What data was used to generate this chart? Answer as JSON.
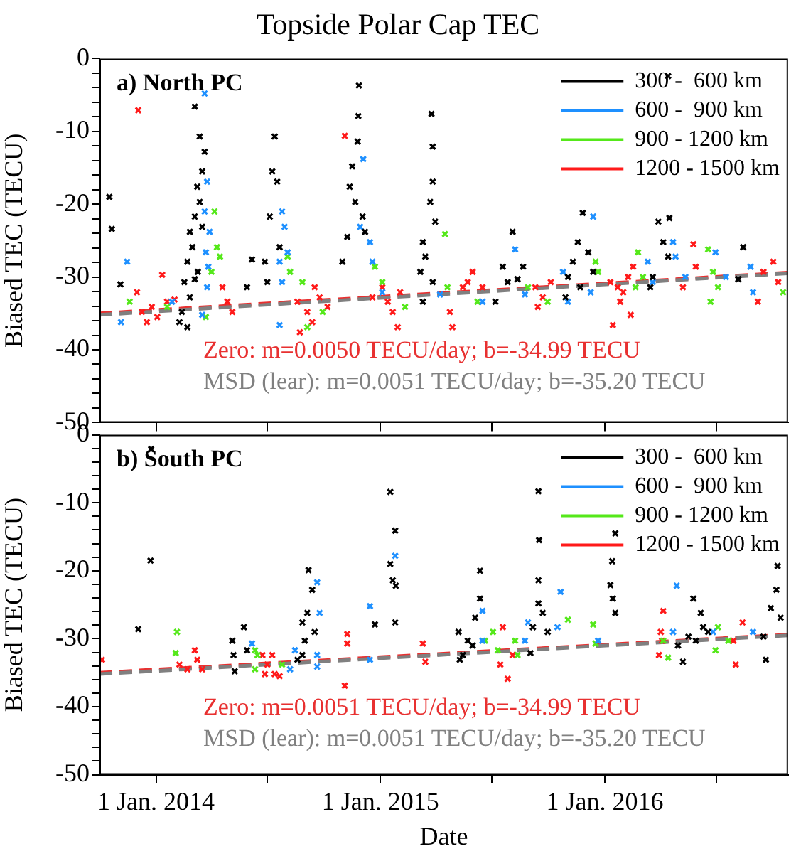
{
  "chart_data": [
    {
      "type": "scatter",
      "title": "Topside Polar Cap TEC",
      "ylabel": "Biased TEC (TECU)",
      "annotations": [
        "a) North PC",
        "Zero: m=0.0050 TECU/day; b=-34.99 TECU",
        "MSD (lear): m=0.0051 TECU/day; b=-35.20 TECU"
      ],
      "xlim": [
        "2013-10-01",
        "2016-10-25"
      ],
      "ylim": [
        -50,
        0
      ],
      "xticks": [
        {
          "value": "2014-01-01",
          "label": null
        },
        {
          "value": "2014-07-01",
          "label": null
        },
        {
          "value": "2015-01-01",
          "label": null
        },
        {
          "value": "2015-07-01",
          "label": null
        },
        {
          "value": "2016-01-01",
          "label": null
        },
        {
          "value": "2016-07-01",
          "label": null
        }
      ],
      "yticks": [
        -50,
        {
          "value": -48,
          "label": null
        },
        {
          "value": -46,
          "label": null
        },
        {
          "value": -44,
          "label": null
        },
        {
          "value": -42,
          "label": null
        },
        -40,
        {
          "value": -38,
          "label": null
        },
        {
          "value": -36,
          "label": null
        },
        {
          "value": -34,
          "label": null
        },
        {
          "value": -32,
          "label": null
        },
        -30,
        {
          "value": -28,
          "label": null
        },
        {
          "value": -26,
          "label": null
        },
        {
          "value": -24,
          "label": null
        },
        {
          "value": -22,
          "label": null
        },
        -20,
        {
          "value": -18,
          "label": null
        },
        {
          "value": -16,
          "label": null
        },
        {
          "value": -14,
          "label": null
        },
        {
          "value": -12,
          "label": null
        },
        -10,
        {
          "value": -8,
          "label": null
        },
        {
          "value": -6,
          "label": null
        },
        {
          "value": -4,
          "label": null
        },
        {
          "value": -2,
          "label": null
        },
        0
      ],
      "legend": "top right",
      "tick_labels": "y",
      "marker": "cross",
      "series": [
        {
          "name": "300 -  600 km",
          "color": "#000000",
          "x": [
            "2013-10-17",
            "2013-10-21",
            "2013-11-04",
            "2014-03-05",
            "2014-03-13",
            "2014-03-21",
            "2014-03-17",
            "2014-03-09",
            "2014-03-13",
            "2014-03-05",
            "2014-02-25",
            "2014-03-01",
            "2014-02-21",
            "2014-02-16",
            "2014-02-25",
            "2014-02-12",
            "2014-02-21",
            "2014-02-08",
            "2014-03-05",
            "2014-03-17",
            "2014-03-10",
            "2014-07-13",
            "2014-07-09",
            "2014-07-17",
            "2014-07-05",
            "2014-07-21",
            "2014-06-27",
            "2014-06-06",
            "2014-07-01",
            "2014-05-29",
            "2014-11-27",
            "2014-11-26",
            "2014-11-25",
            "2014-11-16",
            "2014-11-12",
            "2014-11-21",
            "2014-11-08",
            "2014-10-31",
            "2014-12-03",
            "2014-12-07",
            "2015-03-25",
            "2015-03-27",
            "2015-03-27",
            "2015-03-23",
            "2015-03-31",
            "2015-03-11",
            "2015-03-15",
            "2015-03-07",
            "2015-03-27",
            "2015-03-11",
            "2015-07-07",
            "2015-07-19",
            "2015-08-04",
            "2015-08-12",
            "2015-08-21",
            "2015-07-27",
            "2015-11-26",
            "2015-11-18",
            "2015-11-10",
            "2015-11-02",
            "2015-12-05",
            "2015-12-13",
            "2015-10-29",
            "2015-11-22",
            "2016-04-15",
            "2016-03-28",
            "2016-04-05",
            "2016-04-13",
            "2016-03-19",
            "2016-03-15",
            "2016-04-13",
            "2016-08-13",
            "2016-08-05"
          ],
          "values": [
            -19.0,
            -23.4,
            -31.0,
            -6.6,
            -10.7,
            -12.8,
            -15.5,
            -17.6,
            -19.7,
            -21.7,
            -23.8,
            -25.9,
            -27.9,
            -30.7,
            -32.8,
            -34.8,
            -36.9,
            -36.2,
            -30.3,
            -23.1,
            -29.3,
            -10.7,
            -15.5,
            -16.9,
            -21.7,
            -25.9,
            -27.9,
            -27.6,
            -30.7,
            -31.4,
            -3.7,
            -7.9,
            -11.4,
            -14.8,
            -17.6,
            -19.7,
            -24.5,
            -27.9,
            -21.7,
            -23.8,
            -7.6,
            -12.1,
            -16.9,
            -19.7,
            -22.4,
            -25.2,
            -27.2,
            -29.3,
            -30.7,
            -33.4,
            -33.4,
            -28.6,
            -23.8,
            -30.3,
            -28.6,
            -30.7,
            -21.2,
            -25.2,
            -27.9,
            -30.0,
            -26.6,
            -29.3,
            -32.8,
            -31.4,
            -21.9,
            -22.4,
            -25.2,
            -27.2,
            -30.0,
            -31.4,
            -2.4,
            -25.9,
            -30.3
          ]
        },
        {
          "name": "600 -  900 km",
          "color": "#1e90ff",
          "x": [
            "2013-11-15",
            "2014-03-21",
            "2014-03-25",
            "2014-03-21",
            "2014-03-29",
            "2014-03-23",
            "2014-03-27",
            "2014-03-25",
            "2014-03-17",
            "2014-01-27",
            "2013-11-05",
            "2014-07-25",
            "2014-07-29",
            "2014-07-21",
            "2014-08-03",
            "2014-07-25",
            "2014-07-21",
            "2014-11-29",
            "2014-12-15",
            "2014-12-19",
            "2014-12-04",
            "2015-01-04",
            "2015-04-08",
            "2015-06-16",
            "2015-08-08",
            "2015-08-24",
            "2015-12-13",
            "2015-10-25",
            "2015-11-02",
            "2015-12-09",
            "2016-03-11",
            "2016-03-19",
            "2016-04-21",
            "2016-04-25",
            "2016-05-11",
            "2016-06-29",
            "2016-07-16",
            "2016-08-25",
            "2016-08-29"
          ],
          "values": [
            -27.9,
            -4.8,
            -16.9,
            -21.0,
            -23.8,
            -26.6,
            -28.6,
            -31.4,
            -35.2,
            -33.4,
            -36.2,
            -21.0,
            -23.1,
            -27.9,
            -26.6,
            -30.7,
            -36.6,
            -23.1,
            -25.2,
            -27.9,
            -13.8,
            -32.1,
            -32.4,
            -33.4,
            -26.2,
            -32.4,
            -21.7,
            -29.3,
            -33.4,
            -32.1,
            -27.9,
            -30.7,
            -25.2,
            -27.2,
            -30.0,
            -26.6,
            -30.0,
            -28.6,
            -32.1
          ]
        },
        {
          "name": "900 - 1200 km",
          "color": "#55e81a",
          "x": [
            "2014-04-06",
            "2014-04-10",
            "2014-04-15",
            "2014-04-01",
            "2014-03-23",
            "2013-11-19",
            "2014-01-19",
            "2014-08-03",
            "2014-08-07",
            "2014-08-27",
            "2014-09-29",
            "2014-09-04",
            "2014-12-23",
            "2015-01-04",
            "2015-02-10",
            "2015-04-16",
            "2015-04-20",
            "2015-06-08",
            "2015-08-29",
            "2015-09-30",
            "2015-12-17",
            "2015-12-21",
            "2016-02-24",
            "2016-03-03",
            "2016-02-20",
            "2016-06-17",
            "2016-06-25",
            "2016-07-03",
            "2016-06-21",
            "2016-10-17"
          ],
          "values": [
            -21.0,
            -25.9,
            -27.2,
            -29.3,
            -35.5,
            -33.4,
            -34.1,
            -27.2,
            -29.3,
            -30.7,
            -34.8,
            -36.9,
            -28.6,
            -30.7,
            -34.1,
            -24.1,
            -31.4,
            -33.4,
            -31.4,
            -33.4,
            -27.9,
            -29.3,
            -26.6,
            -30.0,
            -31.4,
            -26.2,
            -29.3,
            -31.4,
            -33.4,
            -32.1
          ]
        },
        {
          "name": "1200 - 1500 km",
          "color": "#ff1a1a",
          "x": [
            "2013-12-03",
            "2014-01-11",
            "2013-12-01",
            "2013-12-09",
            "2013-12-17",
            "2013-12-25",
            "2014-01-03",
            "2014-01-19",
            "2014-01-31",
            "2014-04-19",
            "2014-04-27",
            "2014-05-05",
            "2014-08-19",
            "2014-09-04",
            "2014-09-16",
            "2014-09-12",
            "2014-09-24",
            "2014-10-07",
            "2014-08-23",
            "2014-11-04",
            "2014-12-19",
            "2015-01-04",
            "2015-01-21",
            "2015-02-02",
            "2015-01-29",
            "2015-01-13",
            "2015-04-24",
            "2015-04-28",
            "2015-05-15",
            "2015-05-31",
            "2015-05-23",
            "2015-06-16",
            "2015-09-10",
            "2015-09-22",
            "2015-10-05",
            "2015-09-14",
            "2016-01-14",
            "2016-01-22",
            "2016-01-31",
            "2016-02-08",
            "2016-02-16",
            "2016-01-26",
            "2016-02-12",
            "2016-01-10",
            "2016-05-24",
            "2016-05-28",
            "2016-05-07",
            "2016-09-15",
            "2016-10-01",
            "2016-09-06",
            "2016-10-09"
          ],
          "values": [
            -7.1,
            -29.7,
            -32.1,
            -34.8,
            -36.2,
            -34.1,
            -35.5,
            -33.4,
            -33.1,
            -31.4,
            -33.4,
            -34.8,
            -33.4,
            -34.8,
            -31.4,
            -36.2,
            -32.8,
            -34.1,
            -37.6,
            -10.6,
            -32.8,
            -31.4,
            -34.8,
            -32.1,
            -36.9,
            -33.4,
            -34.8,
            -36.9,
            -31.4,
            -29.3,
            -30.7,
            -31.4,
            -31.4,
            -32.8,
            -30.7,
            -34.1,
            -36.6,
            -31.4,
            -32.1,
            -30.0,
            -28.6,
            -33.4,
            -35.2,
            -30.7,
            -25.5,
            -28.6,
            -31.4,
            -29.3,
            -27.9,
            -33.4,
            -30.7
          ]
        },
        {
          "type": "line",
          "color": "#808080",
          "line_style": "dashed",
          "marker": "none",
          "x": [
            "2013-10-01",
            "2016-10-25"
          ],
          "values": [
            -35.2,
            -29.5
          ]
        },
        {
          "type": "line",
          "color": "#e83030",
          "line_style": "dashed",
          "marker": "none",
          "x": [
            "2013-10-01",
            "2016-10-25"
          ],
          "values": [
            -35.0,
            -29.4
          ]
        }
      ]
    },
    {
      "type": "scatter",
      "xlabel": "Date",
      "ylabel": "Biased TEC (TECU)",
      "annotations": [
        "b) South PC",
        "Zero: m=0.0051 TECU/day; b=-34.99 TECU",
        "MSD (lear): m=0.0051 TECU/day; b=-35.20 TECU"
      ],
      "xlim": [
        "2013-10-01",
        "2016-10-25"
      ],
      "ylim": [
        -50,
        0
      ],
      "xticks": [
        {
          "value": "2014-01-01",
          "label": "1 Jan. 2014"
        },
        {
          "value": "2014-07-01",
          "label": null
        },
        {
          "value": "2015-01-01",
          "label": "1 Jan. 2015"
        },
        {
          "value": "2015-07-01",
          "label": null
        },
        {
          "value": "2016-01-01",
          "label": "1 Jan. 2016"
        },
        {
          "value": "2016-07-01",
          "label": null
        }
      ],
      "yticks": [
        -50,
        {
          "value": -48,
          "label": null
        },
        {
          "value": -46,
          "label": null
        },
        {
          "value": -44,
          "label": null
        },
        {
          "value": -42,
          "label": null
        },
        -40,
        {
          "value": -38,
          "label": null
        },
        {
          "value": -36,
          "label": null
        },
        {
          "value": -34,
          "label": null
        },
        {
          "value": -32,
          "label": null
        },
        -30,
        {
          "value": -28,
          "label": null
        },
        {
          "value": -26,
          "label": null
        },
        {
          "value": -24,
          "label": null
        },
        {
          "value": -22,
          "label": null
        },
        -20,
        {
          "value": -18,
          "label": null
        },
        {
          "value": -16,
          "label": null
        },
        {
          "value": -14,
          "label": null
        },
        {
          "value": -12,
          "label": null
        },
        -10,
        {
          "value": -8,
          "label": null
        },
        {
          "value": -6,
          "label": null
        },
        {
          "value": -4,
          "label": null
        },
        {
          "value": -2,
          "label": null
        },
        0
      ],
      "legend": "top right",
      "marker": "cross",
      "series": [
        {
          "name": "300 -  600 km",
          "color": "#000000",
          "x": [
            "2013-12-24",
            "2013-12-23",
            "2013-12-03",
            "2014-05-05",
            "2014-05-07",
            "2014-05-09",
            "2014-05-24",
            "2014-05-29",
            "2014-09-06",
            "2014-09-04",
            "2014-09-12",
            "2014-08-27",
            "2014-08-31",
            "2014-08-27",
            "2014-08-19",
            "2014-09-16",
            "2014-12-23",
            "2015-01-17",
            "2015-01-25",
            "2015-01-17",
            "2015-01-21",
            "2015-01-26",
            "2015-01-25",
            "2015-05-08",
            "2015-05-15",
            "2015-05-23",
            "2015-06-12",
            "2015-06-12",
            "2015-06-04",
            "2015-05-31",
            "2015-05-10",
            "2015-09-15",
            "2015-09-16",
            "2015-09-15",
            "2015-09-15",
            "2015-09-22",
            "2015-09-06",
            "2015-09-02",
            "2015-09-30",
            "2016-01-18",
            "2016-01-13",
            "2016-01-10",
            "2016-01-14",
            "2016-01-18",
            "2016-05-24",
            "2016-06-05",
            "2016-06-09",
            "2016-05-16",
            "2016-05-07",
            "2016-04-29",
            "2016-05-28",
            "2016-06-17",
            "2016-09-15",
            "2016-09-19",
            "2016-09-27",
            "2016-10-08",
            "2016-10-06",
            "2016-10-13"
          ],
          "values": [
            -2.1,
            -18.5,
            -28.6,
            -30.3,
            -32.4,
            -34.8,
            -28.3,
            -31.7,
            -19.9,
            -26.2,
            -22.8,
            -27.6,
            -30.3,
            -32.4,
            -33.1,
            -29.0,
            -27.9,
            -8.4,
            -14.1,
            -19.0,
            -21.4,
            -22.2,
            -27.6,
            -29.0,
            -32.4,
            -30.3,
            -20.0,
            -24.1,
            -26.9,
            -31.0,
            -33.1,
            -8.3,
            -15.5,
            -21.4,
            -24.8,
            -26.2,
            -28.3,
            -32.1,
            -29.0,
            -14.5,
            -18.6,
            -22.1,
            -24.1,
            -26.2,
            -24.1,
            -26.2,
            -28.3,
            -29.7,
            -33.4,
            -31.0,
            -30.3,
            -29.0,
            -29.7,
            -33.1,
            -25.5,
            -19.3,
            -22.8,
            -26.9
          ]
        },
        {
          "name": "600 -  900 km",
          "color": "#1e90ff",
          "x": [
            "2014-06-06",
            "2014-08-15",
            "2014-08-07",
            "2014-09-20",
            "2014-09-24",
            "2014-09-20",
            "2014-09-20",
            "2014-12-15",
            "2014-12-15",
            "2015-01-25",
            "2015-06-16",
            "2015-06-16",
            "2015-08-24",
            "2015-08-29",
            "2015-10-21",
            "2015-10-16",
            "2015-12-21",
            "2016-04-27",
            "2016-04-21",
            "2016-06-25",
            "2016-08-29"
          ],
          "values": [
            -30.7,
            -31.7,
            -34.5,
            -21.7,
            -26.2,
            -32.4,
            -34.1,
            -25.2,
            -33.1,
            -17.8,
            -25.9,
            -30.3,
            -30.3,
            -27.6,
            -23.1,
            -28.3,
            -30.3,
            -22.2,
            -29.0,
            -29.0,
            -29.0
          ]
        },
        {
          "name": "900 - 1200 km",
          "color": "#55e81a",
          "x": [
            "2014-02-04",
            "2014-02-02",
            "2014-06-11",
            "2014-06-15",
            "2014-06-11",
            "2014-07-25",
            "2015-06-20",
            "2015-07-03",
            "2015-07-11",
            "2015-08-12",
            "2015-08-08",
            "2015-11-02",
            "2015-12-13",
            "2015-12-17",
            "2016-04-13",
            "2016-04-05",
            "2016-07-03",
            "2016-06-29",
            "2016-07-20"
          ],
          "values": [
            -29.0,
            -32.1,
            -31.7,
            -32.4,
            -34.5,
            -33.8,
            -30.3,
            -29.0,
            -31.7,
            -32.4,
            -30.3,
            -27.2,
            -27.9,
            -30.7,
            -32.8,
            -30.3,
            -28.3,
            -31.7,
            -30.3
          ]
        },
        {
          "name": "1200 - 1500 km",
          "color": "#ff1a1a",
          "x": [
            "2013-10-05",
            "2014-02-08",
            "2014-03-05",
            "2014-03-09",
            "2014-03-17",
            "2014-02-21",
            "2014-06-23",
            "2014-07-01",
            "2014-07-09",
            "2014-07-13",
            "2014-06-27",
            "2014-07-21",
            "2014-11-08",
            "2014-11-08",
            "2014-11-04",
            "2015-03-11",
            "2015-03-15",
            "2015-07-19",
            "2015-07-15",
            "2015-07-27",
            "2015-08-04",
            "2016-04-05",
            "2016-04-01",
            "2016-04-03",
            "2016-03-29",
            "2016-07-28",
            "2016-08-01",
            "2016-08-12"
          ],
          "values": [
            -33.1,
            -33.8,
            -31.7,
            -33.1,
            -34.5,
            -34.5,
            -32.4,
            -33.8,
            -32.4,
            -35.2,
            -35.2,
            -35.5,
            -29.3,
            -30.7,
            -36.9,
            -30.7,
            -33.4,
            -28.3,
            -33.8,
            -35.9,
            -32.4,
            -25.9,
            -29.0,
            -30.3,
            -32.4,
            -30.3,
            -33.8,
            -27.6
          ]
        },
        {
          "type": "line",
          "color": "#808080",
          "line_style": "dashed",
          "marker": "none",
          "x": [
            "2013-10-01",
            "2016-10-25"
          ],
          "values": [
            -35.2,
            -29.5
          ]
        },
        {
          "type": "line",
          "color": "#e83030",
          "line_style": "dashed",
          "marker": "none",
          "x": [
            "2013-10-01",
            "2016-10-25"
          ],
          "values": [
            -35.0,
            -29.4
          ]
        }
      ]
    }
  ]
}
